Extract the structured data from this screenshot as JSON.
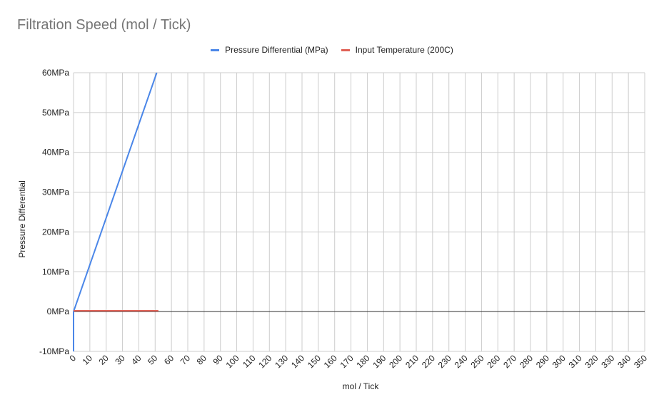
{
  "chart_data": {
    "type": "line",
    "title": "Filtration Speed (mol / Tick)",
    "xlabel": "mol / Tick",
    "ylabel": "Pressure Differential",
    "xlim": [
      0,
      350
    ],
    "ylim": [
      -10,
      60
    ],
    "x_ticks": [
      0,
      10,
      20,
      30,
      40,
      50,
      60,
      70,
      80,
      90,
      100,
      110,
      120,
      130,
      140,
      150,
      160,
      170,
      180,
      190,
      200,
      210,
      220,
      230,
      240,
      250,
      260,
      270,
      280,
      290,
      300,
      310,
      320,
      330,
      340,
      350
    ],
    "y_ticks": [
      {
        "value": -10,
        "label": "-10MPa"
      },
      {
        "value": 0,
        "label": "0MPa"
      },
      {
        "value": 10,
        "label": "10MPa"
      },
      {
        "value": 20,
        "label": "20MPa"
      },
      {
        "value": 30,
        "label": "30MPa"
      },
      {
        "value": 40,
        "label": "40MPa"
      },
      {
        "value": 50,
        "label": "50MPa"
      },
      {
        "value": 60,
        "label": "60MPa"
      }
    ],
    "grid": true,
    "legend_position": "top",
    "series": [
      {
        "name": "Pressure Differential (MPa)",
        "color": "#4a86e8",
        "points": [
          [
            0,
            -10
          ],
          [
            0,
            0
          ],
          [
            51,
            60
          ]
        ]
      },
      {
        "name": "Input Temperature (200C)",
        "color": "#e06055",
        "points": [
          [
            0,
            0.2
          ],
          [
            52,
            0.2
          ]
        ]
      }
    ]
  }
}
